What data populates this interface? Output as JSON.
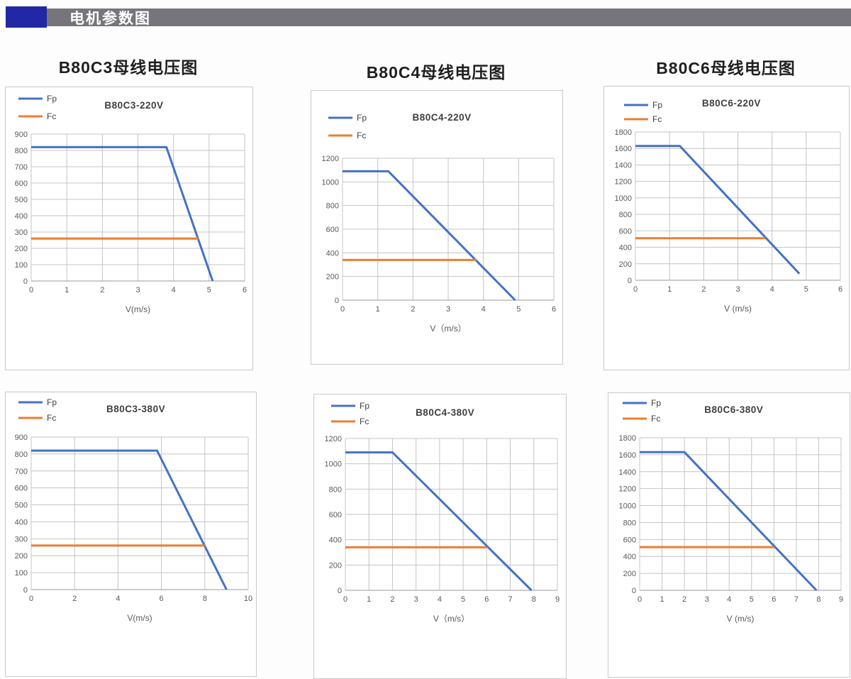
{
  "header": {
    "title": "电机参数图",
    "accent_color": "#2028A5",
    "bar_color": "#75757B"
  },
  "colors": {
    "fp_line": "#4472C4",
    "fc_line": "#ED7D31",
    "grid": "#c4c4c4",
    "axis": "#9a9a9a"
  },
  "sections": [
    {
      "group_title": "B80C3母线电压图"
    },
    {
      "group_title": "B80C4母线电压图"
    },
    {
      "group_title": "B80C6母线电压图"
    }
  ],
  "chart_data": [
    {
      "type": "line",
      "title": "B80C3-220V",
      "xlabel": "V(m/s)",
      "xlim": [
        0,
        6
      ],
      "xstep": 1,
      "ylim": [
        0,
        900
      ],
      "ystep": 100,
      "legend": [
        "Fp",
        "Fc"
      ],
      "legend_position": "top-left",
      "grid": true,
      "series": [
        {
          "name": "Fp",
          "color": "#4472C4",
          "points": [
            [
              0,
              820
            ],
            [
              3.8,
              820
            ],
            [
              5.1,
              0
            ]
          ]
        },
        {
          "name": "Fc",
          "color": "#ED7D31",
          "points": [
            [
              0,
              260
            ],
            [
              4.7,
              260
            ]
          ]
        }
      ]
    },
    {
      "type": "line",
      "title": "B80C4-220V",
      "xlabel": "V（m/s）",
      "xlim": [
        0,
        6
      ],
      "xstep": 1,
      "ylim": [
        0,
        1200
      ],
      "ystep": 200,
      "legend": [
        "Fp",
        "Fc"
      ],
      "legend_position": "top-left",
      "grid": true,
      "series": [
        {
          "name": "Fp",
          "color": "#4472C4",
          "points": [
            [
              0,
              1090
            ],
            [
              1.3,
              1090
            ],
            [
              4.9,
              0
            ]
          ]
        },
        {
          "name": "Fc",
          "color": "#ED7D31",
          "points": [
            [
              0,
              340
            ],
            [
              3.8,
              340
            ]
          ]
        }
      ]
    },
    {
      "type": "line",
      "title": "B80C6-220V",
      "xlabel": "V (m/s)",
      "xlim": [
        0,
        6
      ],
      "xstep": 1,
      "ylim": [
        0,
        1800
      ],
      "ystep": 200,
      "legend": [
        "Fp",
        "Fc"
      ],
      "legend_position": "top-left",
      "grid": true,
      "series": [
        {
          "name": "Fp",
          "color": "#4472C4",
          "points": [
            [
              0,
              1630
            ],
            [
              1.3,
              1630
            ],
            [
              4.8,
              80
            ]
          ]
        },
        {
          "name": "Fc",
          "color": "#ED7D31",
          "points": [
            [
              0,
              510
            ],
            [
              3.8,
              510
            ]
          ]
        }
      ]
    },
    {
      "type": "line",
      "title": "B80C3-380V",
      "xlabel": "V(m/s)",
      "xlim": [
        0,
        10
      ],
      "xstep": 2,
      "ylim": [
        0,
        900
      ],
      "ystep": 100,
      "legend": [
        "Fp",
        "Fc"
      ],
      "legend_position": "top-left",
      "grid": true,
      "series": [
        {
          "name": "Fp",
          "color": "#4472C4",
          "points": [
            [
              0,
              820
            ],
            [
              5.8,
              820
            ],
            [
              9.0,
              0
            ]
          ]
        },
        {
          "name": "Fc",
          "color": "#ED7D31",
          "points": [
            [
              0,
              260
            ],
            [
              8.0,
              260
            ]
          ]
        }
      ]
    },
    {
      "type": "line",
      "title": "B80C4-380V",
      "xlabel": "V（m/s）",
      "xlim": [
        0,
        9
      ],
      "xstep": 1,
      "ylim": [
        0,
        1200
      ],
      "ystep": 200,
      "legend": [
        "Fp",
        "Fc"
      ],
      "legend_position": "top-left",
      "grid": true,
      "series": [
        {
          "name": "Fp",
          "color": "#4472C4",
          "points": [
            [
              0,
              1090
            ],
            [
              2.0,
              1090
            ],
            [
              7.9,
              0
            ]
          ]
        },
        {
          "name": "Fc",
          "color": "#ED7D31",
          "points": [
            [
              0,
              340
            ],
            [
              6.0,
              340
            ]
          ]
        }
      ]
    },
    {
      "type": "line",
      "title": "B80C6-380V",
      "xlabel": "V (m/s)",
      "xlim": [
        0,
        9
      ],
      "xstep": 1,
      "ylim": [
        0,
        1800
      ],
      "ystep": 200,
      "legend": [
        "Fp",
        "Fc"
      ],
      "legend_position": "top-left",
      "grid": true,
      "series": [
        {
          "name": "Fp",
          "color": "#4472C4",
          "points": [
            [
              0,
              1630
            ],
            [
              2.0,
              1630
            ],
            [
              7.9,
              0
            ]
          ]
        },
        {
          "name": "Fc",
          "color": "#ED7D31",
          "points": [
            [
              0,
              510
            ],
            [
              6.0,
              510
            ]
          ]
        }
      ]
    }
  ]
}
